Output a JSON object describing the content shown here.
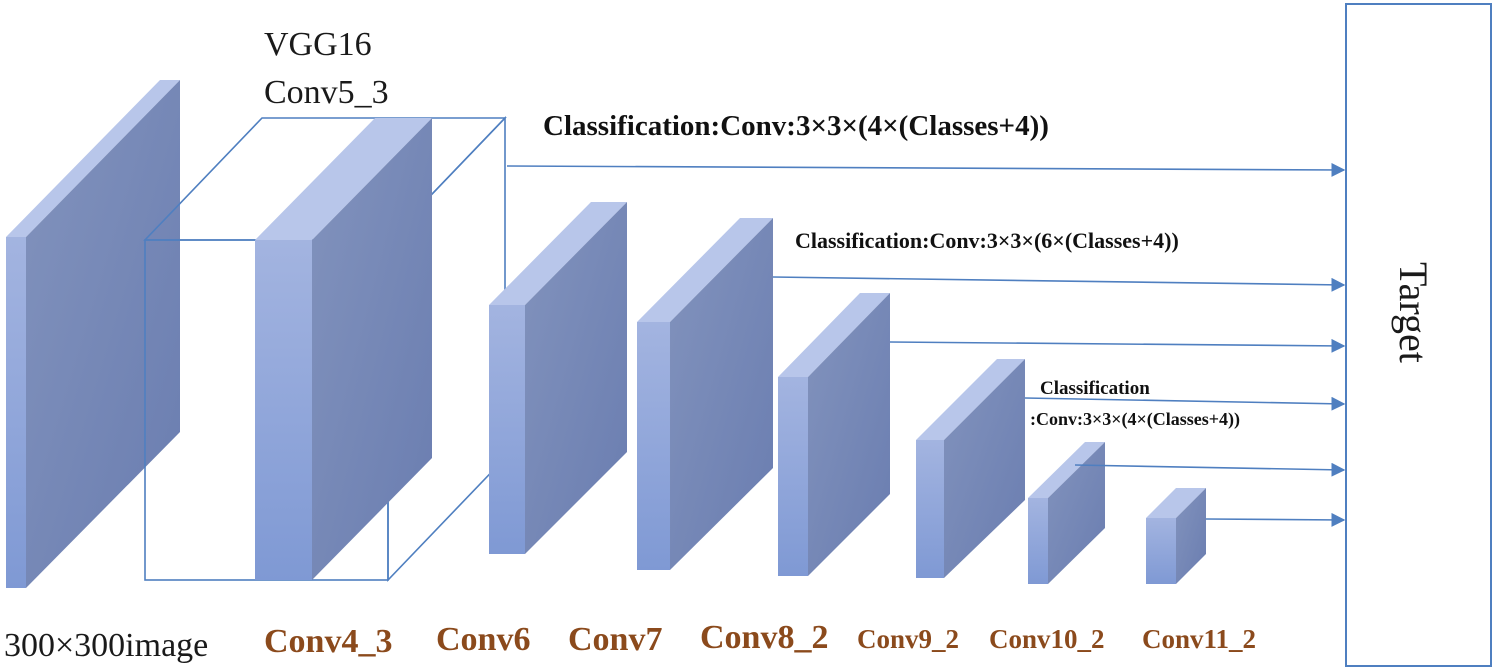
{
  "backbone": {
    "line1": "VGG16",
    "line2": "Conv5_3"
  },
  "layer_labels": {
    "input": "300×300image",
    "conv4_3": "Conv4_3",
    "conv6": "Conv6",
    "conv7": "Conv7",
    "conv8_2": "Conv8_2",
    "conv9_2": "Conv9_2",
    "conv10_2": "Conv10_2",
    "conv11_2": "Conv11_2"
  },
  "classifications": {
    "top": "Classification:Conv:3×3×(4×(Classes+4))",
    "middle": "Classification:Conv:3×3×(6×(Classes+4))",
    "lower_line1": "Classification",
    "lower_line2": ":Conv:3×3×(4×(Classes+4))"
  },
  "target": {
    "label": "Target"
  },
  "colors": {
    "front": "#8ea4d8",
    "side": "#6f84b4",
    "top": "#b8c6ea",
    "line": "#4f7fc0",
    "brown_label": "#8b4a1c"
  }
}
